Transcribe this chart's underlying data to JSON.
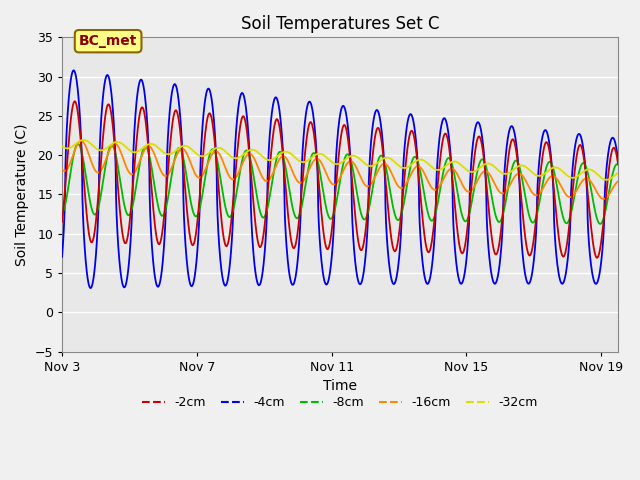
{
  "title": "Soil Temperatures Set C",
  "xlabel": "Time",
  "ylabel": "Soil Temperature (C)",
  "ylim": [
    -5,
    35
  ],
  "xlim_days": [
    0,
    16.5
  ],
  "xtick_positions": [
    0,
    4,
    8,
    12,
    16
  ],
  "xtick_labels": [
    "Nov 3",
    "Nov 7",
    "Nov 11",
    "Nov 15",
    "Nov 19"
  ],
  "ytick_positions": [
    -5,
    0,
    5,
    10,
    15,
    20,
    25,
    30,
    35
  ],
  "annotation": "BC_met",
  "colors": {
    "-2cm": "#cc0000",
    "-4cm": "#0000ee",
    "-8cm": "#00bb00",
    "-16cm": "#ff8800",
    "-32cm": "#dddd00"
  },
  "bg_color": "#e0e0e0",
  "plot_bg": "#e8e8e8",
  "linestyle": "-",
  "linewidth": 1.3,
  "legend_labels": [
    "-2cm",
    "-4cm",
    "-8cm",
    "-16cm",
    "-32cm"
  ]
}
